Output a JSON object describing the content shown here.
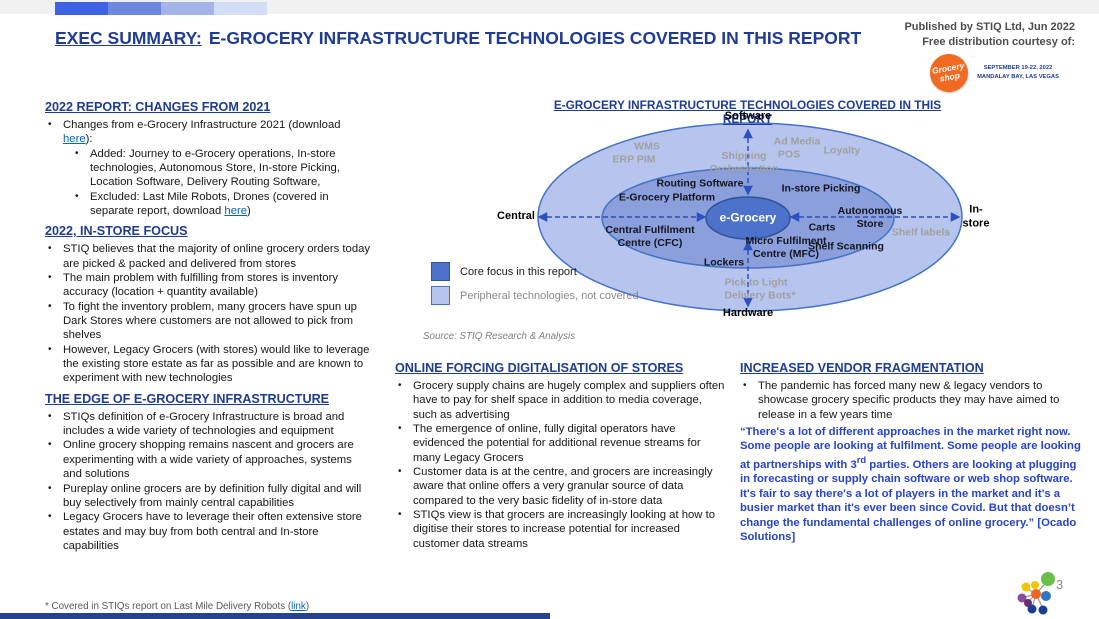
{
  "colors": {
    "accent_navy": "#1f3c94",
    "quote_blue": "#2743cb",
    "link_blue": "#0563c1",
    "ellipse_core_fill": "#4d72cc",
    "ellipse_middle_fill": "#8a9fdb",
    "ellipse_outer_fill": "#b7c4ee",
    "ellipse_border": "#4472c4",
    "peripheral_gray": "#a0a0a0",
    "event_orange": "#f26a21",
    "bottom_bar_navy": "#26418e"
  },
  "top_bar": {
    "squares": [
      "#3e62e3",
      "#6d86de",
      "#a5b4e8",
      "#d3ddf6"
    ]
  },
  "header": {
    "title_prefix": "EXEC SUMMARY:",
    "title_rest": "E-GROCERY INFRASTRUCTURE TECHNOLOGIES COVERED IN THIS REPORT",
    "published_line1": "Published by STIQ Ltd, Jun 2022",
    "published_line2": "Free distribution courtesy of:",
    "event_logo_text": "Grocery\nshop",
    "event_details": "SEPTEMBER 19-22, 2022\nMANDALAY BAY, LAS VEGAS"
  },
  "left_column": {
    "sections": [
      {
        "heading": "2022 REPORT: CHANGES FROM 2021",
        "bullets": [
          {
            "level": 1,
            "segments": [
              {
                "t": "Changes from e-Grocery Infrastructure 2021 (download "
              },
              {
                "t": "here",
                "link": true
              },
              {
                "t": "):"
              }
            ]
          },
          {
            "level": 2,
            "segments": [
              {
                "t": "Added: Journey to e-Grocery operations, In-store technologies, Autonomous Store, In-store Picking, Location Software, Delivery Routing Software,"
              }
            ]
          },
          {
            "level": 2,
            "segments": [
              {
                "t": "Excluded: Last Mile Robots, Drones (covered in separate report, download "
              },
              {
                "t": "here",
                "link": true
              },
              {
                "t": ")"
              }
            ]
          }
        ]
      },
      {
        "heading": "2022, IN-STORE FOCUS",
        "bullets": [
          {
            "level": 1,
            "segments": [
              {
                "t": "STIQ believes that the majority of online grocery orders today are picked & packed and delivered from stores"
              }
            ]
          },
          {
            "level": 1,
            "segments": [
              {
                "t": "The main problem with fulfilling from stores is inventory accuracy (location + quantity available)"
              }
            ]
          },
          {
            "level": 1,
            "segments": [
              {
                "t": "To fight the inventory problem, many grocers have spun up Dark Stores where customers are not allowed to pick from shelves"
              }
            ]
          },
          {
            "level": 1,
            "segments": [
              {
                "t": "However, Legacy Grocers (with stores) would like to leverage the existing store estate as far as possible and are known to experiment with new technologies"
              }
            ]
          }
        ]
      },
      {
        "heading": "THE EDGE OF E-GROCERY INFRASTRUCTURE",
        "bullets": [
          {
            "level": 1,
            "segments": [
              {
                "t": "STIQs definition of e-Grocery Infrastructure is broad and includes a wide variety of technologies and equipment"
              }
            ]
          },
          {
            "level": 1,
            "segments": [
              {
                "t": "Online grocery shopping remains nascent and grocers are experimenting with a wide variety of approaches, systems and solutions"
              }
            ]
          },
          {
            "level": 1,
            "segments": [
              {
                "t": "Pureplay online grocers are by definition fully digital and will buy selectively from mainly central capabilities"
              }
            ]
          },
          {
            "level": 1,
            "segments": [
              {
                "t": "Legacy Grocers have to leverage their often extensive store estates and may buy from both central and In-store capabilities"
              }
            ]
          }
        ]
      }
    ]
  },
  "diagram": {
    "title": "E-GROCERY INFRASTRUCTURE TECHNOLOGIES COVERED IN THIS REPORT",
    "axis": {
      "top": "Software",
      "bottom": "Hardware",
      "left": "Central",
      "right": "In-store"
    },
    "center": "e-Grocery",
    "core_labels": {
      "routing_software": "Routing Software",
      "egrocery_platform": "E-Grocery Platform",
      "instore_picking": "In-store Picking",
      "autonomous_store": "Autonomous\nStore",
      "carts": "Carts",
      "cfc": "Central Fulfilment\nCentre (CFC)",
      "mfc": "Micro Fulfilment\nCentre (MFC)",
      "shelf_scanning": "Shelf Scanning",
      "lockers": "Lockers"
    },
    "peripheral_labels": {
      "wms": "WMS",
      "erp_pim": "ERP PIM",
      "shipping_orchestration": "Shipping\nOrchestration",
      "ad_media": "Ad Media",
      "pos": "POS",
      "loyalty": "Loyalty",
      "shelf_labels": "Shelf labels",
      "pick_to_light": "Pick to Light",
      "delivery_bots": "Delivery Bots*"
    },
    "legend": [
      {
        "label": "Core focus in this report"
      },
      {
        "label": "Peripheral technologies, not covered"
      }
    ],
    "source": "Source: STIQ Research & Analysis"
  },
  "mid_column": {
    "heading": "ONLINE FORCING DIGITALISATION OF STORES",
    "bullets": [
      {
        "level": 1,
        "segments": [
          {
            "t": "Grocery supply chains are hugely complex and suppliers often have to pay for shelf space in addition to media coverage, such as advertising"
          }
        ]
      },
      {
        "level": 1,
        "segments": [
          {
            "t": "The emergence of online, fully digital operators have evidenced the potential for additional revenue streams for many Legacy Grocers"
          }
        ]
      },
      {
        "level": 1,
        "segments": [
          {
            "t": "Customer data is at the centre, and grocers are increasingly aware that online offers a very granular source of data compared to the very basic fidelity of in-store data"
          }
        ]
      },
      {
        "level": 1,
        "segments": [
          {
            "t": "STIQs view is that grocers are increasingly looking at how to digitise their stores to increase potential for increased customer data streams"
          }
        ]
      }
    ]
  },
  "right_column": {
    "heading": "INCREASED VENDOR FRAGMENTATION",
    "bullets": [
      {
        "level": 1,
        "segments": [
          {
            "t": "The pandemic has forced many new & legacy vendors to showcase grocery specific products they may have aimed to release in a few years time"
          }
        ]
      }
    ],
    "quote_segments": [
      {
        "t": "“There's a lot of different approaches in the market right now. Some people are looking at fulfilment. Some people are looking at partnerships with 3"
      },
      {
        "t": "rd",
        "sup": true
      },
      {
        "t": " parties. Others are looking at plugging in forecasting or supply chain software or web shop software. It's fair to say there's a lot of players in the market and it's a busier market than it's ever been since Covid. But that doesn’t change the fundamental challenges of online grocery.” [Ocado Solutions]"
      }
    ]
  },
  "footer": {
    "footnote_segments": [
      {
        "t": "* Covered in STIQs report on Last Mile Delivery Robots ("
      },
      {
        "t": "link",
        "link": true
      },
      {
        "t": ")"
      }
    ],
    "page_number": "3"
  }
}
